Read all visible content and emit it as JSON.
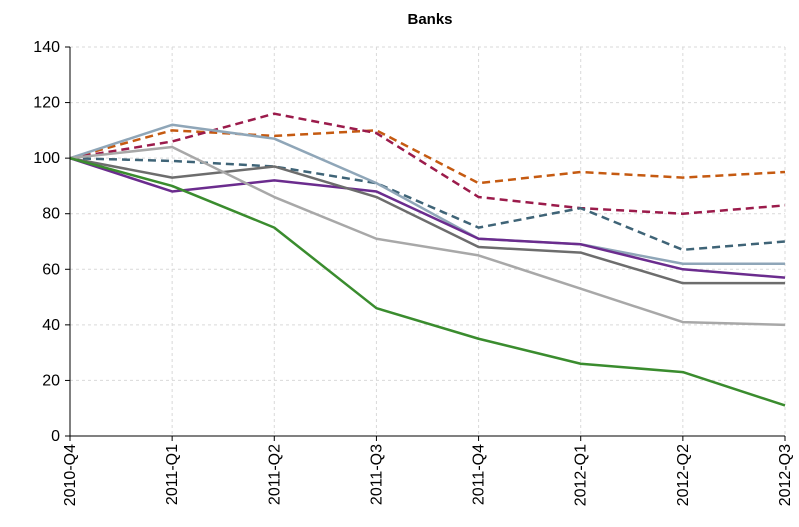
{
  "chart_data": {
    "type": "line",
    "title": "Banks",
    "xlabel": "",
    "ylabel": "",
    "categories": [
      "2010-Q4",
      "2011-Q1",
      "2011-Q2",
      "2011-Q3",
      "2011-Q4",
      "2012-Q1",
      "2012-Q2",
      "2012-Q3"
    ],
    "ylim": [
      0,
      140
    ],
    "yticks": [
      0,
      20,
      40,
      60,
      80,
      100,
      120,
      140
    ],
    "grid": true,
    "legend": "none",
    "series": [
      {
        "color": "#c55a11",
        "dash": true,
        "values": [
          100,
          110,
          108,
          110,
          91,
          95,
          93,
          95
        ]
      },
      {
        "color": "#9b1b4b",
        "dash": true,
        "values": [
          100,
          106,
          116,
          109,
          86,
          82,
          80,
          83
        ]
      },
      {
        "color": "#3f6477",
        "dash": true,
        "values": [
          100,
          99,
          97,
          91,
          75,
          82,
          67,
          70
        ]
      },
      {
        "color": "#8fa6b8",
        "dash": false,
        "values": [
          100,
          112,
          107,
          91,
          71,
          69,
          62,
          62
        ]
      },
      {
        "color": "#6b2c8e",
        "dash": false,
        "values": [
          100,
          88,
          92,
          88,
          71,
          69,
          60,
          57
        ]
      },
      {
        "color": "#6d6d6d",
        "dash": false,
        "values": [
          100,
          93,
          97,
          86,
          68,
          66,
          55,
          55
        ]
      },
      {
        "color": "#a8a8a8",
        "dash": false,
        "values": [
          100,
          104,
          86,
          71,
          65,
          53,
          41,
          40
        ]
      },
      {
        "color": "#3a8c2e",
        "dash": false,
        "values": [
          100,
          90,
          75,
          46,
          35,
          26,
          23,
          11
        ]
      }
    ]
  }
}
